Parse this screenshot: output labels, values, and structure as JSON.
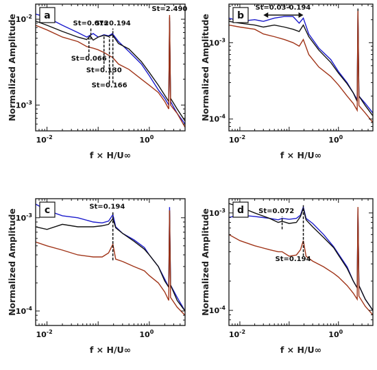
{
  "chart_data": [
    {
      "type": "line",
      "panel_label": "a",
      "xlabel": "f × H/U∞",
      "ylabel": "Normalized Amplitude",
      "xscale": "log",
      "yscale": "log",
      "xlim": [
        0.006,
        5
      ],
      "ylim": [
        0.0005,
        0.015
      ],
      "xticks": [
        {
          "v": 0.01,
          "label": "10-2"
        },
        {
          "v": 1,
          "label": "100"
        }
      ],
      "yticks": [
        {
          "v": 0.01,
          "label": "10-2"
        },
        {
          "v": 0.001,
          "label": "10-3"
        }
      ],
      "series": [
        {
          "color": "#1a1acc",
          "x": [
            0.006,
            0.01,
            0.02,
            0.04,
            0.06,
            0.08,
            0.1,
            0.13,
            0.16,
            0.19,
            0.25,
            0.4,
            0.7,
            1.0,
            1.5,
            2.0,
            2.4,
            2.49,
            2.6,
            3.5,
            5
          ],
          "y": [
            0.0115,
            0.0105,
            0.0085,
            0.007,
            0.0062,
            0.0068,
            0.0062,
            0.0066,
            0.0064,
            0.0068,
            0.0055,
            0.0042,
            0.003,
            0.0022,
            0.0015,
            0.0012,
            0.001,
            0.0095,
            0.0011,
            0.0008,
            0.0006
          ]
        },
        {
          "color": "#111111",
          "x": [
            0.006,
            0.01,
            0.02,
            0.04,
            0.06,
            0.07,
            0.08,
            0.1,
            0.13,
            0.16,
            0.19,
            0.25,
            0.4,
            0.7,
            1.0,
            1.5,
            2.0,
            2.4,
            2.49,
            2.6,
            3.5,
            5
          ],
          "y": [
            0.0095,
            0.0085,
            0.0072,
            0.0062,
            0.0058,
            0.0064,
            0.0057,
            0.0062,
            0.0065,
            0.0063,
            0.0066,
            0.0052,
            0.0045,
            0.0032,
            0.0024,
            0.0017,
            0.0013,
            0.0011,
            0.0105,
            0.0012,
            0.0009,
            0.00065
          ]
        },
        {
          "color": "#a03418",
          "x": [
            0.006,
            0.01,
            0.02,
            0.04,
            0.06,
            0.08,
            0.1,
            0.13,
            0.16,
            0.19,
            0.25,
            0.4,
            0.7,
            1.0,
            1.5,
            2.0,
            2.4,
            2.49,
            2.6,
            3.5,
            5
          ],
          "y": [
            0.0085,
            0.0075,
            0.0062,
            0.0055,
            0.0048,
            0.0046,
            0.0044,
            0.0041,
            0.0038,
            0.0036,
            0.003,
            0.0026,
            0.002,
            0.0017,
            0.0014,
            0.0011,
            0.0009,
            0.0112,
            0.001,
            0.0008,
            0.00055
          ]
        }
      ],
      "annotations": [
        {
          "text": "St=0.072",
          "x": 0.072,
          "y": 0.0085
        },
        {
          "text": "St=0.194",
          "x": 0.194,
          "y": 0.0085
        },
        {
          "text": "St=2.490",
          "x": 2.49,
          "y": 0.0125
        },
        {
          "text": "St=0.066",
          "x": 0.066,
          "y": 0.0033
        },
        {
          "text": "St=0.130",
          "x": 0.13,
          "y": 0.0024
        },
        {
          "text": "St=0.166",
          "x": 0.166,
          "y": 0.0016
        }
      ],
      "markers": [
        {
          "x": 0.066,
          "y0": 0.0037,
          "y1": 0.0062
        },
        {
          "x": 0.072,
          "y0": 0.0058,
          "y1": 0.0078
        },
        {
          "x": 0.13,
          "y0": 0.0027,
          "y1": 0.0063
        },
        {
          "x": 0.166,
          "y0": 0.0018,
          "y1": 0.0062
        },
        {
          "x": 0.194,
          "y0": 0.0018,
          "y1": 0.0078
        }
      ]
    },
    {
      "type": "line",
      "panel_label": "b",
      "xlabel": "f × H/U∞",
      "ylabel": "Normalized Amplitude",
      "xscale": "log",
      "yscale": "log",
      "xlim": [
        0.006,
        5
      ],
      "ylim": [
        7e-05,
        0.0032
      ],
      "xticks": [
        {
          "v": 0.01,
          "label": "10-2"
        },
        {
          "v": 1,
          "label": "100"
        }
      ],
      "yticks": [
        {
          "v": 0.001,
          "label": "10-3"
        },
        {
          "v": 0.0001,
          "label": "10-4"
        }
      ],
      "series": [
        {
          "color": "#1a1acc",
          "x": [
            0.006,
            0.01,
            0.02,
            0.03,
            0.05,
            0.08,
            0.12,
            0.16,
            0.194,
            0.25,
            0.4,
            0.7,
            1.0,
            1.5,
            2.0,
            2.4,
            2.49,
            2.6,
            3.5,
            5
          ],
          "y": [
            0.0021,
            0.0019,
            0.002,
            0.0019,
            0.0021,
            0.0022,
            0.0022,
            0.0018,
            0.0021,
            0.0013,
            0.00085,
            0.0006,
            0.00042,
            0.0003,
            0.00022,
            0.00018,
            0.0025,
            0.0002,
            0.00016,
            0.00012
          ]
        },
        {
          "color": "#111111",
          "x": [
            0.006,
            0.01,
            0.02,
            0.03,
            0.05,
            0.08,
            0.12,
            0.16,
            0.194,
            0.25,
            0.4,
            0.7,
            1.0,
            1.5,
            2.0,
            2.4,
            2.49,
            2.6,
            3.5,
            5
          ],
          "y": [
            0.0019,
            0.0018,
            0.0017,
            0.0016,
            0.0017,
            0.0016,
            0.0015,
            0.0014,
            0.0017,
            0.0012,
            0.0008,
            0.00055,
            0.0004,
            0.00029,
            0.00022,
            0.00017,
            0.0028,
            0.0002,
            0.00015,
            0.00011
          ]
        },
        {
          "color": "#a03418",
          "x": [
            0.006,
            0.01,
            0.02,
            0.03,
            0.05,
            0.08,
            0.12,
            0.16,
            0.194,
            0.25,
            0.4,
            0.7,
            1.0,
            1.5,
            2.0,
            2.4,
            2.49,
            2.6,
            3.5,
            5
          ],
          "y": [
            0.0017,
            0.0016,
            0.0015,
            0.0013,
            0.0012,
            0.0011,
            0.001,
            0.0009,
            0.0011,
            0.0007,
            0.00048,
            0.00036,
            0.00028,
            0.0002,
            0.00016,
            0.00013,
            0.0026,
            0.00015,
            0.00012,
            9e-05
          ]
        }
      ],
      "annotations": [
        {
          "text": "St=0.03-0.194",
          "x": 0.075,
          "y": 0.0027
        }
      ],
      "range_arrow": {
        "x0": 0.03,
        "x1": 0.194,
        "y": 0.0023
      }
    },
    {
      "type": "line",
      "panel_label": "c",
      "xlabel": "f × H/U∞",
      "ylabel": "Normalized Amplitude",
      "xscale": "log",
      "yscale": "log",
      "xlim": [
        0.006,
        5
      ],
      "ylim": [
        7e-05,
        0.0016
      ],
      "xticks": [
        {
          "v": 0.01,
          "label": "10-2"
        },
        {
          "v": 1,
          "label": "100"
        }
      ],
      "yticks": [
        {
          "v": 0.001,
          "label": "10-3"
        },
        {
          "v": 0.0001,
          "label": "10-4"
        }
      ],
      "series": [
        {
          "color": "#1a1acc",
          "x": [
            0.006,
            0.01,
            0.02,
            0.04,
            0.08,
            0.12,
            0.16,
            0.194,
            0.22,
            0.3,
            0.5,
            0.8,
            1.0,
            1.5,
            2.0,
            2.4,
            2.49,
            2.6,
            3.5,
            5
          ],
          "y": [
            0.0014,
            0.0012,
            0.00105,
            0.001,
            0.0009,
            0.00088,
            0.00092,
            0.00108,
            0.0008,
            0.00068,
            0.00058,
            0.00048,
            0.0004,
            0.0003,
            0.00022,
            0.00018,
            0.0013,
            0.00019,
            0.00014,
            0.0001
          ]
        },
        {
          "color": "#111111",
          "x": [
            0.006,
            0.01,
            0.02,
            0.04,
            0.08,
            0.12,
            0.16,
            0.194,
            0.22,
            0.3,
            0.5,
            0.8,
            1.0,
            1.5,
            2.0,
            2.4,
            2.49,
            2.6,
            3.5,
            5
          ],
          "y": [
            0.0008,
            0.00075,
            0.00085,
            0.0008,
            0.0008,
            0.00082,
            0.00085,
            0.00098,
            0.00078,
            0.00068,
            0.00056,
            0.00046,
            0.0004,
            0.0003,
            0.00021,
            0.00018,
            0.0012,
            0.00019,
            0.00013,
            0.0001
          ]
        },
        {
          "color": "#a03418",
          "x": [
            0.006,
            0.01,
            0.02,
            0.04,
            0.08,
            0.12,
            0.16,
            0.194,
            0.22,
            0.3,
            0.5,
            0.8,
            1.0,
            1.5,
            2.0,
            2.4,
            2.49,
            2.6,
            3.5,
            5
          ],
          "y": [
            0.00055,
            0.0005,
            0.00045,
            0.0004,
            0.00038,
            0.00038,
            0.00042,
            0.00052,
            0.00036,
            0.00034,
            0.0003,
            0.00027,
            0.00024,
            0.0002,
            0.00016,
            0.00013,
            0.0012,
            0.00014,
            0.00011,
            9e-05
          ]
        }
      ],
      "annotations": [
        {
          "text": "St=0.194",
          "x": 0.15,
          "y": 0.00125
        }
      ],
      "markers": [
        {
          "x": 0.194,
          "y0": 0.00035,
          "y1": 0.00115
        }
      ]
    },
    {
      "type": "line",
      "panel_label": "d",
      "xlabel": "f × H/U∞",
      "ylabel": "Normalized Amplitude",
      "xscale": "log",
      "yscale": "log",
      "xlim": [
        0.006,
        5
      ],
      "ylim": [
        7e-05,
        0.0014
      ],
      "xticks": [
        {
          "v": 0.01,
          "label": "10-2"
        },
        {
          "v": 1,
          "label": "100"
        }
      ],
      "yticks": [
        {
          "v": 0.001,
          "label": "10-3"
        },
        {
          "v": 0.0001,
          "label": "10-4"
        }
      ],
      "series": [
        {
          "color": "#1a1acc",
          "x": [
            0.006,
            0.01,
            0.02,
            0.04,
            0.06,
            0.072,
            0.1,
            0.14,
            0.17,
            0.194,
            0.22,
            0.3,
            0.5,
            0.8,
            1.0,
            1.5,
            2.0,
            2.4,
            2.49,
            2.6,
            3.5,
            5
          ],
          "y": [
            0.0009,
            0.00095,
            0.00092,
            0.00088,
            0.00085,
            0.00088,
            0.00086,
            0.00088,
            0.00095,
            0.00115,
            0.00088,
            0.00078,
            0.0006,
            0.00045,
            0.00038,
            0.00028,
            0.0002,
            0.00017,
            0.0011,
            0.00018,
            0.00013,
            0.0001
          ]
        },
        {
          "color": "#111111",
          "x": [
            0.006,
            0.01,
            0.02,
            0.04,
            0.06,
            0.072,
            0.1,
            0.14,
            0.17,
            0.194,
            0.22,
            0.3,
            0.5,
            0.8,
            1.0,
            1.5,
            2.0,
            2.4,
            2.49,
            2.6,
            3.5,
            5
          ],
          "y": [
            0.00125,
            0.00115,
            0.001,
            0.00088,
            0.0008,
            0.00082,
            0.00078,
            0.0008,
            0.00092,
            0.00112,
            0.00085,
            0.00072,
            0.00056,
            0.00044,
            0.00037,
            0.00027,
            0.0002,
            0.00017,
            0.00105,
            0.00018,
            0.00013,
            0.0001
          ]
        },
        {
          "color": "#a03418",
          "x": [
            0.006,
            0.01,
            0.02,
            0.04,
            0.06,
            0.072,
            0.1,
            0.14,
            0.17,
            0.194,
            0.22,
            0.3,
            0.5,
            0.8,
            1.0,
            1.5,
            2.0,
            2.4,
            2.49,
            2.6,
            3.5,
            5
          ],
          "y": [
            0.0006,
            0.00052,
            0.00046,
            0.00042,
            0.0004,
            0.0004,
            0.00036,
            0.00037,
            0.00042,
            0.00052,
            0.00036,
            0.00032,
            0.00028,
            0.00024,
            0.00022,
            0.00018,
            0.00015,
            0.00013,
            0.00115,
            0.00014,
            0.00011,
            9e-05
          ]
        }
      ],
      "annotations": [
        {
          "text": "St=0.072",
          "x": 0.055,
          "y": 0.001
        },
        {
          "text": "St=0.194",
          "x": 0.12,
          "y": 0.00032
        }
      ],
      "markers": [
        {
          "x": 0.072,
          "y0": 0.00068,
          "y1": 0.00092
        },
        {
          "x": 0.194,
          "y0": 0.00036,
          "y1": 0.0012
        }
      ]
    }
  ]
}
